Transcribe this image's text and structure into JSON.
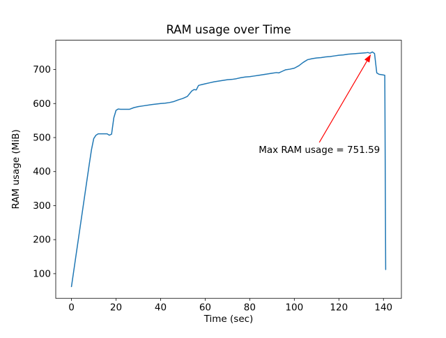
{
  "figure": {
    "background": "#ffffff"
  },
  "chart_data": {
    "type": "line",
    "title": "RAM usage over Time",
    "xlabel": "Time (sec)",
    "ylabel": "RAM usage (MiB)",
    "xlim": [
      -7.05,
      148.05
    ],
    "ylim": [
      27.5,
      786.1
    ],
    "xticks": [
      0,
      20,
      40,
      60,
      80,
      100,
      120,
      140
    ],
    "yticks": [
      100,
      200,
      300,
      400,
      500,
      600,
      700
    ],
    "grid": false,
    "legend": "none",
    "line_color": "#1f77b4",
    "series": [
      {
        "name": "RAM usage",
        "points": [
          [
            0,
            62
          ],
          [
            1,
            107
          ],
          [
            2,
            152
          ],
          [
            3,
            197
          ],
          [
            4,
            242
          ],
          [
            5,
            287
          ],
          [
            6,
            332
          ],
          [
            7,
            377
          ],
          [
            8,
            422
          ],
          [
            9,
            465
          ],
          [
            10,
            497
          ],
          [
            11,
            507
          ],
          [
            12,
            511
          ],
          [
            16,
            511
          ],
          [
            17,
            507
          ],
          [
            18,
            510
          ],
          [
            19,
            558
          ],
          [
            20,
            580
          ],
          [
            21,
            584
          ],
          [
            22,
            583
          ],
          [
            26,
            583
          ],
          [
            28,
            588
          ],
          [
            30,
            591
          ],
          [
            32,
            593
          ],
          [
            36,
            597
          ],
          [
            40,
            600
          ],
          [
            42,
            601
          ],
          [
            44,
            603
          ],
          [
            46,
            606
          ],
          [
            48,
            611
          ],
          [
            50,
            615
          ],
          [
            52,
            621
          ],
          [
            54,
            637
          ],
          [
            55,
            641
          ],
          [
            56,
            640
          ],
          [
            57,
            653
          ],
          [
            58,
            655
          ],
          [
            60,
            658
          ],
          [
            62,
            661
          ],
          [
            64,
            664
          ],
          [
            66,
            666
          ],
          [
            68,
            668
          ],
          [
            70,
            670
          ],
          [
            72,
            671
          ],
          [
            74,
            673
          ],
          [
            76,
            676
          ],
          [
            78,
            678
          ],
          [
            80,
            679
          ],
          [
            82,
            681
          ],
          [
            84,
            683
          ],
          [
            86,
            685
          ],
          [
            88,
            687
          ],
          [
            90,
            689
          ],
          [
            92,
            691
          ],
          [
            93,
            690
          ],
          [
            95,
            696
          ],
          [
            96,
            699
          ],
          [
            98,
            701
          ],
          [
            100,
            704
          ],
          [
            102,
            711
          ],
          [
            104,
            721
          ],
          [
            106,
            729
          ],
          [
            108,
            732
          ],
          [
            110,
            734
          ],
          [
            112,
            735
          ],
          [
            114,
            737
          ],
          [
            116,
            738
          ],
          [
            118,
            740
          ],
          [
            120,
            742
          ],
          [
            122,
            743
          ],
          [
            124,
            745
          ],
          [
            126,
            746
          ],
          [
            128,
            747
          ],
          [
            130,
            748
          ],
          [
            132,
            749
          ],
          [
            133,
            750
          ],
          [
            134,
            748
          ],
          [
            135,
            751.59
          ],
          [
            136,
            747
          ],
          [
            137,
            690
          ],
          [
            138,
            686
          ],
          [
            139,
            685
          ],
          [
            140,
            684
          ],
          [
            140.6,
            683
          ],
          [
            141,
            112
          ]
        ]
      }
    ],
    "annotation": {
      "text": "Max RAM usage = 751.59",
      "xy": [
        135,
        751.59
      ],
      "xytext": [
        84,
        455
      ],
      "color": "#ff0000",
      "max_value": 751.59
    }
  }
}
